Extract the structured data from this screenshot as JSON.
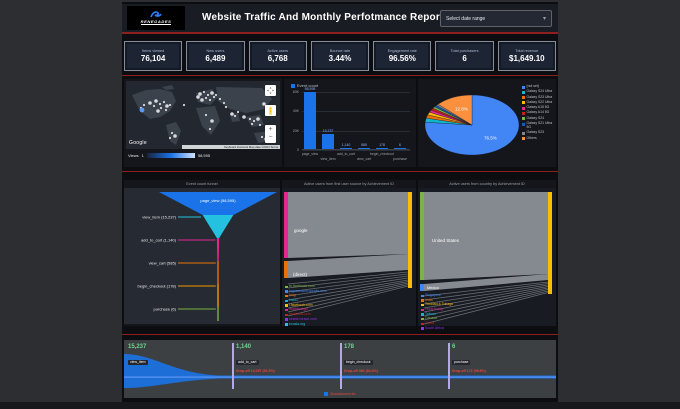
{
  "header": {
    "logo": "RENEGADES",
    "title": "Website Traffic And Monthly Perfotmance Report",
    "date_selector": "Select date range"
  },
  "kpis": [
    {
      "label": "Items viewed",
      "value": "76,104"
    },
    {
      "label": "New users",
      "value": "6,489"
    },
    {
      "label": "Active users",
      "value": "6,768"
    },
    {
      "label": "Bounce rate",
      "value": "3.44%"
    },
    {
      "label": "Engagement rate",
      "value": "96.56%"
    },
    {
      "label": "Total purchasers",
      "value": "6"
    },
    {
      "label": "Total revenue",
      "value": "$1,649.10"
    }
  ],
  "map": {
    "views_label": "Views",
    "min": "1",
    "max": "58,595",
    "google": "Google",
    "attribution": "Keyboard shortcuts   Map data ©2024   Terms"
  },
  "colors": {
    "accent_red": "#8e1f1f",
    "primary_blue": "#1a73e8",
    "value_green": "#6dd58c",
    "dropoff_red": "#e8453c"
  },
  "chart_data": [
    {
      "id": "event-bar",
      "type": "bar",
      "legend": "Event count",
      "categories": [
        "page_view",
        "view_item",
        "add_to_cart",
        "view_cart",
        "begin_checkout",
        "purchase"
      ],
      "values": [
        58595,
        15237,
        1140,
        585,
        178,
        6
      ],
      "value_labels": [
        "58,595",
        "15,237",
        "1,140",
        "585",
        "178",
        "6"
      ],
      "yticks": [
        "60K",
        "40K",
        "20K",
        "0"
      ],
      "ylim": [
        0,
        60000
      ],
      "bar_color": "#1a73e8"
    },
    {
      "id": "device-pie",
      "type": "pie",
      "labels": [
        "(not set)",
        "Galaxy S24 Ultra",
        "Galaxy S23 Ultra",
        "Galaxy S22 Ultra",
        "Galaxy A15 5G",
        "Galaxy A14 5G",
        "Galaxy S24",
        "Galaxy S21 Ultra 5G",
        "Galaxy S23",
        "Others"
      ],
      "values": [
        76.5,
        2.2,
        1.8,
        1.5,
        1.3,
        1.1,
        1.0,
        0.9,
        0.9,
        12.8
      ],
      "colors": [
        "#4285f4",
        "#12b5cb",
        "#e8710a",
        "#fbbc04",
        "#e52592",
        "#c5221f",
        "#7cb342",
        "#185abc",
        "#80868b",
        "#fa903e"
      ],
      "labels_on_chart": [
        {
          "index": 0,
          "text": "76.5%"
        },
        {
          "index": 9,
          "text": "12.8%"
        }
      ],
      "legend_position": "right"
    },
    {
      "id": "event-funnel",
      "type": "funnel",
      "title": "Event count funnel",
      "steps": [
        {
          "label": "page_view",
          "display": "page_view (58,595)",
          "value": 58595,
          "color": "#1a73e8"
        },
        {
          "label": "view_item",
          "display": "view_item (15,237)",
          "value": 15237,
          "color": "#24c1e0"
        },
        {
          "label": "add_to_cart",
          "display": "add_to_cart (1,140)",
          "value": 1140,
          "color": "#e52592"
        },
        {
          "label": "view_cart",
          "display": "view_cart (585)",
          "value": 585,
          "color": "#e8710a"
        },
        {
          "label": "begin_checkout",
          "display": "begin_checkout (178)",
          "value": 178,
          "color": "#f29900"
        },
        {
          "label": "purchase",
          "display": "purchase (6)",
          "value": 6,
          "color": "#7cb342"
        }
      ]
    },
    {
      "id": "sankey-source",
      "type": "sankey",
      "title": "Active users from first user source by Achievement ID",
      "left_nodes": [
        {
          "label": "google",
          "color": "#e52592"
        },
        {
          "label": "(direct)",
          "color": "#e8710a"
        }
      ],
      "small_sources": {
        "labels": [
          "m.facebook.com",
          "tagassistant.google.com",
          "bing",
          "baidu",
          "l.facebook.com",
          "duckduckgo",
          "facebook.com",
          "search.brave.com",
          "ecosia.org"
        ],
        "colors": [
          "#7cb342",
          "#4285f4",
          "#e8710a",
          "#12b5cb",
          "#fbbc04",
          "#e52592",
          "#c5221f",
          "#9334e6",
          "#24c1e0"
        ]
      },
      "right_node_color": "#fbbc04"
    },
    {
      "id": "sankey-country",
      "type": "sankey",
      "title": "Active users from country by Achievement ID",
      "left_nodes": [
        {
          "label": "United States",
          "color": "#7cb342"
        },
        {
          "label": "Mexico",
          "color": "#4285f4"
        }
      ],
      "small_sources": {
        "labels": [
          "Singapore",
          "India",
          "Trinidad & Tobago",
          "Hong Kong",
          "Taiwan",
          "Canada",
          "China",
          "South Africa"
        ],
        "colors": [
          "#4285f4",
          "#e8710a",
          "#fbbc04",
          "#e52592",
          "#12b5cb",
          "#7cb342",
          "#c5221f",
          "#9334e6"
        ]
      },
      "right_node_color": "#fbbc04"
    },
    {
      "id": "dropoff-funnel",
      "type": "funnel_steps",
      "steps": [
        {
          "value": "15,237",
          "label": "view_item",
          "dropoff": ""
        },
        {
          "value": "1,140",
          "label": "add_to_cart",
          "dropoff": "Drop-off 14,097 (92.5%)"
        },
        {
          "value": "178",
          "label": "begin_checkout",
          "dropoff": "Drop-off 962 (84.4%)"
        },
        {
          "value": "6",
          "label": "purchase",
          "dropoff": "Drop-off 172 (96.6%)"
        }
      ],
      "legend": "Abandonments"
    }
  ]
}
